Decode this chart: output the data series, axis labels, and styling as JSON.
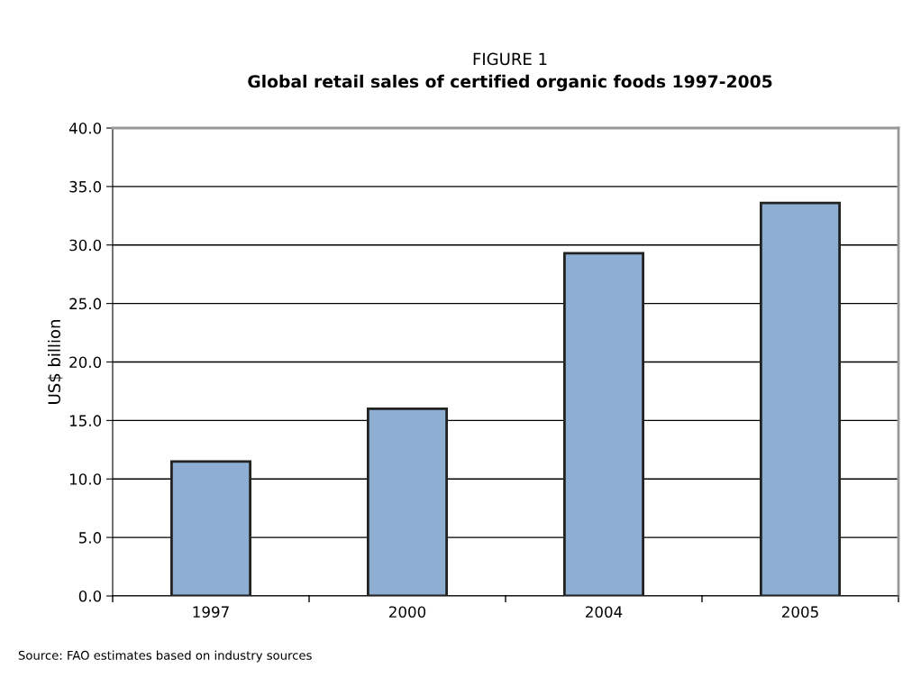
{
  "chart_data": {
    "type": "bar",
    "title": "Global retail sales of certified organic foods 1997-2005",
    "subtitle": "FIGURE 1",
    "ylabel": "US$ billion",
    "categories": [
      "1997",
      "2000",
      "2004",
      "2005"
    ],
    "values": [
      11.5,
      16.0,
      29.3,
      33.6
    ],
    "color": "#8eaed4",
    "ylim": [
      0,
      40
    ],
    "yticks": [
      {
        "value": 0,
        "label": "0.0"
      },
      {
        "value": 5,
        "label": "5.0"
      },
      {
        "value": 10,
        "label": "10.0"
      },
      {
        "value": 15,
        "label": "15.0"
      },
      {
        "value": 20,
        "label": "20.0"
      },
      {
        "value": 25,
        "label": "25.0"
      },
      {
        "value": 30,
        "label": "30.0"
      },
      {
        "value": 35,
        "label": "35.0"
      },
      {
        "value": 40,
        "label": "40.0"
      }
    ],
    "grid": "y",
    "legend": false,
    "annotations": [
      "Source: FAO estimates based on industry sources"
    ]
  }
}
